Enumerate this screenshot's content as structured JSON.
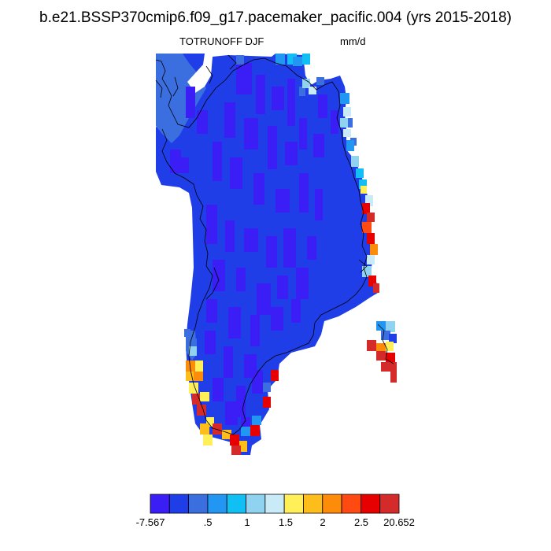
{
  "title": "b.e21.BSSP370cmip6.f09_g17.pacemaker_pacific.004 (yrs 2015-2018)",
  "variable": "TOTRUNOFF DJF",
  "units": "mm/d",
  "colorbar": {
    "colors": [
      "#3b1ef5",
      "#1f3ee8",
      "#3b6fe0",
      "#2196f3",
      "#12bff5",
      "#8fd3f0",
      "#c8ebf7",
      "#fff05a",
      "#fdbd1a",
      "#fd8c0a",
      "#ff4a12",
      "#e60000",
      "#d42a2a"
    ],
    "labels": [
      "-7.567",
      ".5",
      "1",
      "1.5",
      "2",
      "2.5",
      "20.652"
    ]
  }
}
